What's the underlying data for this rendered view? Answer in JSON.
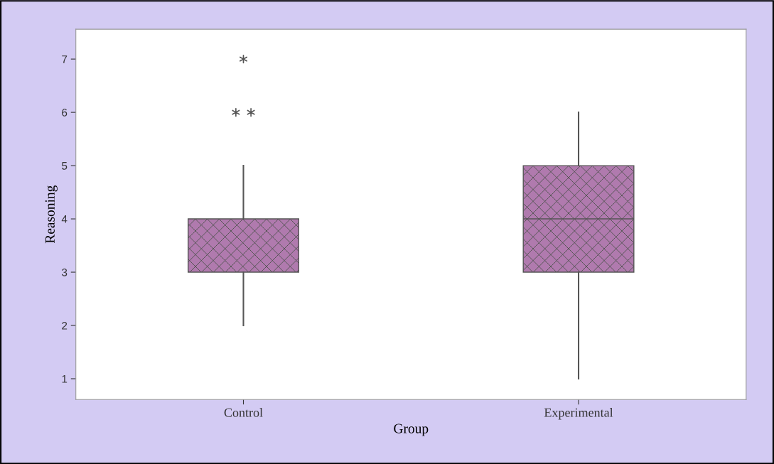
{
  "chart_data": {
    "type": "box",
    "xlabel": "Group",
    "ylabel": "Reasoning",
    "categories": [
      "Control",
      "Experimental"
    ],
    "series": [
      {
        "color": "#b07aae",
        "boxes": [
          {
            "low": 2,
            "q1": 3,
            "median": 3,
            "q3": 4,
            "high": 5,
            "outliers": [
              6,
              6,
              7
            ]
          },
          {
            "low": 1,
            "q1": 3,
            "median": 4,
            "q3": 5,
            "high": 6
          }
        ]
      }
    ],
    "ylim": [
      0.61,
      7.56
    ],
    "yticks": [
      1,
      2,
      3,
      4,
      5,
      6,
      7
    ],
    "grid": false,
    "legend": false
  }
}
